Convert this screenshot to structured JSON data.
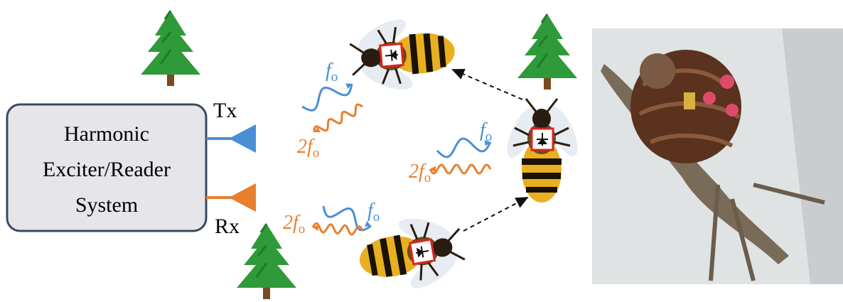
{
  "system_box": {
    "lines": [
      "Harmonic",
      "Exciter/Reader",
      "System"
    ]
  },
  "antennas": {
    "tx": "Tx",
    "rx": "Rx"
  },
  "wave_pairs": [
    {
      "tx_label": {
        "main": "f",
        "sub": "o"
      },
      "rx_label": {
        "main": "2f",
        "sub": "o"
      }
    },
    {
      "tx_label": {
        "main": "f",
        "sub": "o"
      },
      "rx_label": {
        "main": "2f",
        "sub": "o"
      }
    },
    {
      "tx_label": {
        "main": "f",
        "sub": "o"
      },
      "rx_label": {
        "main": "2f",
        "sub": "o"
      }
    }
  ]
}
